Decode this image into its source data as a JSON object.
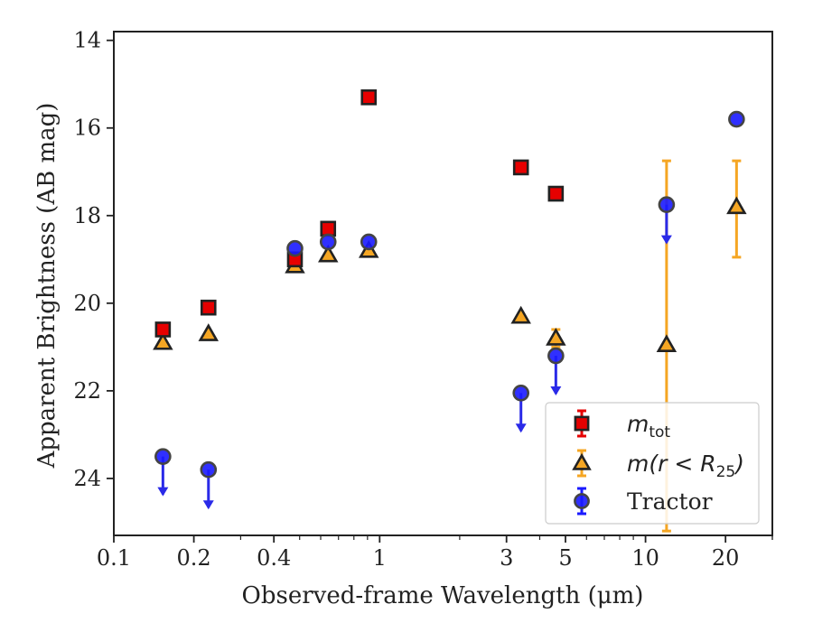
{
  "chart_data": {
    "type": "scatter",
    "xscale": "log",
    "xlim": [
      0.1,
      30
    ],
    "ylim": [
      25.3,
      13.8
    ],
    "y_inverted": true,
    "xlabel": "Observed-frame Wavelength (μm)",
    "ylabel": "Apparent Brightness (AB mag)",
    "xticks": [
      0.1,
      0.2,
      0.4,
      1,
      3,
      5,
      10,
      20
    ],
    "xtick_labels": [
      "0.1",
      "0.2",
      "0.4",
      "1",
      "3",
      "5",
      "10",
      "20"
    ],
    "yticks": [
      14,
      16,
      18,
      20,
      22,
      24
    ],
    "ytick_labels": [
      "14",
      "16",
      "18",
      "20",
      "22",
      "24"
    ],
    "legend": {
      "placement": "lower-right"
    },
    "series": [
      {
        "name": "m_tot",
        "legend_label": "m",
        "legend_sub": "tot",
        "marker": "square",
        "color": "#e60000",
        "points": [
          {
            "x": 0.153,
            "y": 20.6
          },
          {
            "x": 0.227,
            "y": 20.1
          },
          {
            "x": 0.48,
            "y": 19.0
          },
          {
            "x": 0.64,
            "y": 18.3
          },
          {
            "x": 0.91,
            "y": 15.3
          },
          {
            "x": 3.4,
            "y": 16.9
          },
          {
            "x": 4.6,
            "y": 17.5
          }
        ]
      },
      {
        "name": "m(r < R_25)",
        "legend_label": "m(r < R",
        "legend_sub": "25",
        "legend_tail": ")",
        "marker": "triangle",
        "color": "#f5a623",
        "points": [
          {
            "x": 0.153,
            "y": 20.9
          },
          {
            "x": 0.227,
            "y": 20.7
          },
          {
            "x": 0.48,
            "y": 19.15
          },
          {
            "x": 0.64,
            "y": 18.9
          },
          {
            "x": 0.91,
            "y": 18.8
          },
          {
            "x": 3.4,
            "y": 20.3
          },
          {
            "x": 4.6,
            "y": 20.8,
            "err": [
              20.6,
              21.0
            ]
          },
          {
            "x": 12.0,
            "y": 20.95,
            "err": [
              16.75,
              25.2
            ]
          },
          {
            "x": 22.0,
            "y": 17.8,
            "err": [
              16.75,
              18.95
            ]
          }
        ]
      },
      {
        "name": "Tractor",
        "legend_label": "Tractor",
        "marker": "circle",
        "color": "#1a1aff",
        "points": [
          {
            "x": 0.153,
            "y": 23.5,
            "upper_limit": true
          },
          {
            "x": 0.227,
            "y": 23.8,
            "upper_limit": true
          },
          {
            "x": 0.48,
            "y": 18.75
          },
          {
            "x": 0.64,
            "y": 18.6
          },
          {
            "x": 0.91,
            "y": 18.6
          },
          {
            "x": 3.4,
            "y": 22.05,
            "upper_limit": true
          },
          {
            "x": 4.6,
            "y": 21.2,
            "upper_limit": true
          },
          {
            "x": 12.0,
            "y": 17.75,
            "upper_limit": true
          },
          {
            "x": 22.0,
            "y": 15.8
          }
        ]
      }
    ]
  }
}
